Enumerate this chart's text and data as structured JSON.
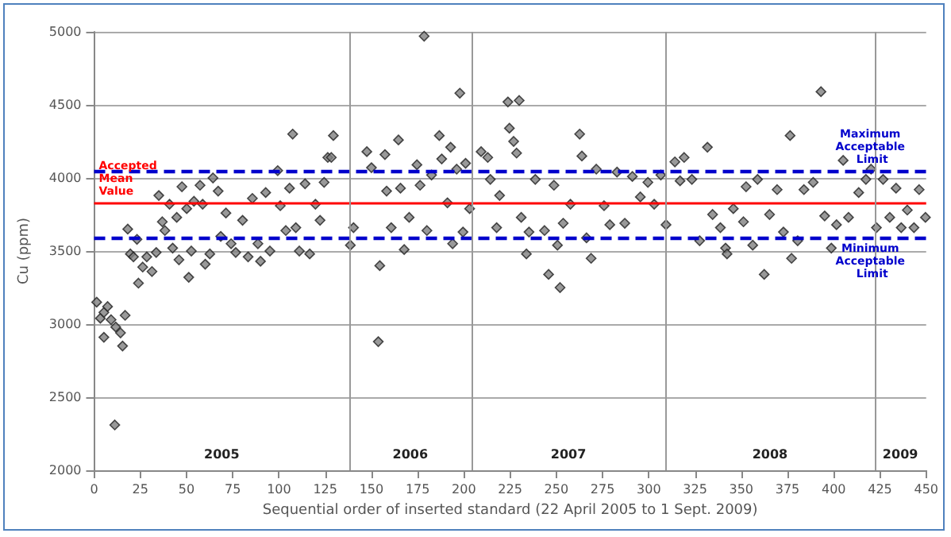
{
  "chart_data": {
    "type": "scatter",
    "xlabel": "Sequential order of inserted standard (22 April 2005 to 1 Sept. 2009)",
    "ylabel": "Cu (ppm)",
    "xlim": [
      0,
      450
    ],
    "xticks": [
      0,
      25,
      50,
      75,
      100,
      125,
      150,
      175,
      200,
      225,
      250,
      275,
      300,
      325,
      350,
      375,
      400,
      425,
      450
    ],
    "ylim": [
      2000,
      5000
    ],
    "yticks": [
      2000,
      2500,
      3000,
      3500,
      4000,
      4500,
      5000
    ],
    "grid": "y",
    "marker": "diamond",
    "series": [
      {
        "color": "#808080",
        "x": [
          1.4,
          3.4,
          5.3,
          7.3,
          5.3,
          9.2,
          11.7,
          11.2,
          14.3,
          15.4,
          16.8,
          18.2,
          19.6,
          21.3,
          23.2,
          24.0,
          26.3,
          28.5,
          31.3,
          33.6,
          35.0,
          36.9,
          38.3,
          40.8,
          42.5,
          44.7,
          45.9,
          47.5,
          50.1,
          51.2,
          52.6,
          54.0,
          57.3,
          58.7,
          60.1,
          62.6,
          64.3,
          67.1,
          68.5,
          71.3,
          74.1,
          76.6,
          80.3,
          83.3,
          85.6,
          88.6,
          90.0,
          92.8,
          95.1,
          99.3,
          100.7,
          103.7,
          105.7,
          107.4,
          109.1,
          111.0,
          114.1,
          116.6,
          119.7,
          122.2,
          124.4,
          126.4,
          129.4,
          128.3,
          138.6,
          140.3,
          147.5,
          150.0,
          153.7,
          154.5,
          157.3,
          158.2,
          160.7,
          164.6,
          165.7,
          167.7,
          170.4,
          174.6,
          176.3,
          178.5,
          180.0,
          182.5,
          186.7,
          188.0,
          191.1,
          192.8,
          193.9,
          196.1,
          197.8,
          199.5,
          200.9,
          203.1,
          209.3,
          212.9,
          214.3,
          217.7,
          219.3,
          223.8,
          224.6,
          226.9,
          228.5,
          229.9,
          231.0,
          233.8,
          235.2,
          238.6,
          243.6,
          245.8,
          248.7,
          250.6,
          252.0,
          253.7,
          257.6,
          262.6,
          263.8,
          266.3,
          268.8,
          271.6,
          275.8,
          278.9,
          282.8,
          287.0,
          291.1,
          295.4,
          299.5,
          302.9,
          306.5,
          309.3,
          314.1,
          316.9,
          319.1,
          323.3,
          327.5,
          331.7,
          334.5,
          338.7,
          341.5,
          342.3,
          345.7,
          351.2,
          352.6,
          356.2,
          358.8,
          362.4,
          365.3,
          369.4,
          372.8,
          376.4,
          377.2,
          380.5,
          383.9,
          388.9,
          393.1,
          395.1,
          398.7,
          401.5,
          405.1,
          408.0,
          413.5,
          417.4,
          420.2,
          423.1,
          426.7,
          430.3,
          433.7,
          436.5,
          439.8,
          443.4,
          446.2,
          449.6
        ],
        "values": [
          3150,
          3040,
          3080,
          3120,
          2910,
          3030,
          2980,
          2310,
          2940,
          2850,
          3060,
          3650,
          3480,
          3460,
          3580,
          3280,
          3390,
          3460,
          3360,
          3490,
          3880,
          3700,
          3640,
          3820,
          3520,
          3730,
          3440,
          3940,
          3790,
          3320,
          3500,
          3840,
          3950,
          3820,
          3410,
          3480,
          4000,
          3910,
          3600,
          3760,
          3550,
          3490,
          3710,
          3460,
          3860,
          3550,
          3430,
          3900,
          3500,
          4050,
          3810,
          3640,
          3930,
          4300,
          3660,
          3500,
          3960,
          3480,
          3820,
          3710,
          3970,
          4140,
          4290,
          4140,
          3540,
          3660,
          4180,
          4070,
          2880,
          3400,
          4160,
          3910,
          3660,
          4260,
          3930,
          3510,
          3730,
          4090,
          3950,
          4970,
          3640,
          4020,
          4290,
          4130,
          3830,
          4210,
          3550,
          4060,
          4580,
          3630,
          4100,
          3790,
          4180,
          4140,
          3990,
          3660,
          3880,
          4520,
          4340,
          4250,
          4170,
          4530,
          3730,
          3480,
          3630,
          3990,
          3640,
          3340,
          3950,
          3540,
          3250,
          3690,
          3820,
          4300,
          4150,
          3590,
          3450,
          4060,
          3810,
          3680,
          4040,
          3690,
          4010,
          3870,
          3970,
          3820,
          4020,
          3680,
          4110,
          3980,
          4140,
          3990,
          3570,
          4210,
          3750,
          3660,
          3520,
          3480,
          3790,
          3700,
          3940,
          3540,
          3990,
          3340,
          3750,
          3920,
          3630,
          4290,
          3450,
          3570,
          3920,
          3970,
          4590,
          3740,
          3520,
          3680,
          4120,
          3730,
          3900,
          3990,
          4060,
          3660,
          3990,
          3730,
          3930,
          3660,
          3780,
          3660,
          3920,
          3730
        ]
      }
    ],
    "ref_lines": [
      {
        "axis": "y",
        "value": 4050,
        "label": "Maximum Acceptable Limit",
        "color": "#0000cc",
        "line_style": "dashed"
      },
      {
        "axis": "y",
        "value": 3830,
        "label": "Accepted Mean Value",
        "color": "#ff0000",
        "line_style": "solid"
      },
      {
        "axis": "y",
        "value": 3590,
        "label": "Minimum Acceptable Limit",
        "color": "#0000cc",
        "line_style": "dashed"
      },
      {
        "axis": "x",
        "value": 138,
        "color": "#999999",
        "line_style": "solid"
      },
      {
        "axis": "x",
        "value": 204,
        "color": "#999999",
        "line_style": "solid"
      },
      {
        "axis": "x",
        "value": 309,
        "color": "#999999",
        "line_style": "solid"
      },
      {
        "axis": "x",
        "value": 422,
        "color": "#999999",
        "line_style": "solid"
      }
    ],
    "annotations": [
      "2005",
      "2006",
      "2007",
      "2008",
      "2009"
    ]
  }
}
